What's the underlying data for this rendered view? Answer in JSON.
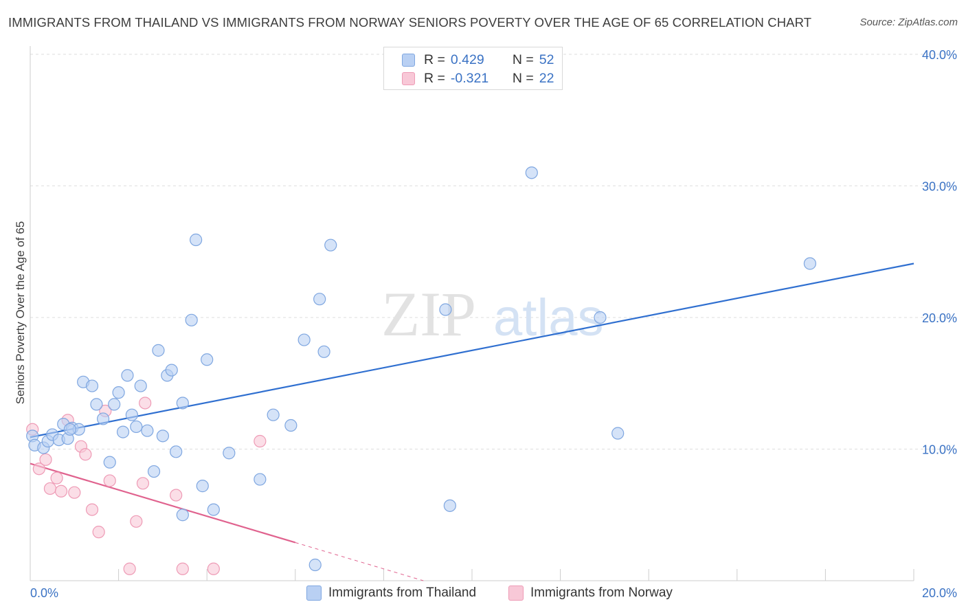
{
  "header": {
    "title": "IMMIGRANTS FROM THAILAND VS IMMIGRANTS FROM NORWAY SENIORS POVERTY OVER THE AGE OF 65 CORRELATION CHART",
    "source": "Source: ZipAtlas.com"
  },
  "legend": {
    "r_label": "R =",
    "n_label": "N =",
    "series": [
      {
        "r": "0.429",
        "n": "52"
      },
      {
        "r": "-0.321",
        "n": "22"
      }
    ]
  },
  "watermark": {
    "zip": "ZIP",
    "atlas": "atlas"
  },
  "colors": {
    "thailand_fill": "#b9d0f3",
    "thailand_stroke": "#7ea6e0",
    "thailand_line": "#2f6fd0",
    "norway_fill": "#f8c8d7",
    "norway_stroke": "#ee9ab5",
    "norway_line": "#e0628e",
    "axis_text": "#3a72c4"
  },
  "chart_data": {
    "type": "scatter",
    "title": "IMMIGRANTS FROM THAILAND VS IMMIGRANTS FROM NORWAY SENIORS POVERTY OVER THE AGE OF 65 CORRELATION CHART",
    "xlabel": "",
    "ylabel": "Seniors Poverty Over the Age of 65",
    "xlim": [
      0,
      20
    ],
    "ylim": [
      0,
      40
    ],
    "x_tick_labels": [
      {
        "value": 0,
        "label": "0.0%"
      },
      {
        "value": 20,
        "label": "20.0%"
      }
    ],
    "y_ticks": [
      {
        "value": 10,
        "label": "10.0%"
      },
      {
        "value": 20,
        "label": "20.0%"
      },
      {
        "value": 30,
        "label": "30.0%"
      },
      {
        "value": 40,
        "label": "40.0%"
      }
    ],
    "x_minor_ticks": [
      0,
      2,
      4,
      6,
      8,
      10,
      12,
      14,
      16,
      18,
      20
    ],
    "grid": true,
    "series": [
      {
        "name": "Immigrants from Thailand",
        "r": 0.429,
        "n": 52,
        "trend": {
          "x": [
            0,
            20
          ],
          "y": [
            10.9,
            24.1
          ],
          "dashed_until": null
        },
        "points": [
          [
            0.05,
            11.0
          ],
          [
            0.1,
            10.3
          ],
          [
            0.3,
            10.1
          ],
          [
            0.4,
            10.6
          ],
          [
            0.5,
            11.1
          ],
          [
            0.65,
            10.7
          ],
          [
            0.75,
            11.9
          ],
          [
            0.85,
            10.8
          ],
          [
            0.95,
            11.6
          ],
          [
            1.1,
            11.5
          ],
          [
            1.2,
            15.1
          ],
          [
            1.4,
            14.8
          ],
          [
            1.5,
            13.4
          ],
          [
            1.65,
            12.3
          ],
          [
            1.8,
            9.0
          ],
          [
            1.9,
            13.4
          ],
          [
            2.0,
            14.3
          ],
          [
            2.1,
            11.3
          ],
          [
            2.2,
            15.6
          ],
          [
            2.3,
            12.6
          ],
          [
            2.4,
            11.7
          ],
          [
            2.5,
            14.8
          ],
          [
            2.65,
            11.4
          ],
          [
            2.8,
            8.3
          ],
          [
            2.9,
            17.5
          ],
          [
            3.0,
            11.0
          ],
          [
            3.1,
            15.6
          ],
          [
            3.2,
            16.0
          ],
          [
            3.3,
            9.8
          ],
          [
            3.45,
            13.5
          ],
          [
            3.65,
            19.8
          ],
          [
            3.75,
            25.9
          ],
          [
            3.9,
            7.2
          ],
          [
            4.0,
            16.8
          ],
          [
            4.15,
            5.4
          ],
          [
            4.5,
            9.7
          ],
          [
            5.2,
            7.7
          ],
          [
            5.5,
            12.6
          ],
          [
            5.9,
            11.8
          ],
          [
            6.2,
            18.3
          ],
          [
            6.55,
            21.4
          ],
          [
            6.65,
            17.4
          ],
          [
            6.8,
            25.5
          ],
          [
            9.4,
            20.6
          ],
          [
            9.5,
            5.7
          ],
          [
            11.35,
            31.0
          ],
          [
            12.9,
            20.0
          ],
          [
            13.3,
            11.2
          ],
          [
            17.65,
            24.1
          ],
          [
            3.45,
            5.0
          ],
          [
            6.45,
            1.2
          ],
          [
            0.9,
            11.5
          ]
        ]
      },
      {
        "name": "Immigrants from Norway",
        "r": -0.321,
        "n": 22,
        "trend": {
          "x": [
            0,
            20
          ],
          "y": [
            8.9,
            -11.1
          ],
          "solid_until_x": 6.0
        },
        "points": [
          [
            0.05,
            11.5
          ],
          [
            0.2,
            8.5
          ],
          [
            0.35,
            9.2
          ],
          [
            0.45,
            7.0
          ],
          [
            0.6,
            7.8
          ],
          [
            0.7,
            6.8
          ],
          [
            0.85,
            12.2
          ],
          [
            1.0,
            6.7
          ],
          [
            1.15,
            10.2
          ],
          [
            1.25,
            9.6
          ],
          [
            1.4,
            5.4
          ],
          [
            1.55,
            3.7
          ],
          [
            1.7,
            12.9
          ],
          [
            1.8,
            7.6
          ],
          [
            2.25,
            0.9
          ],
          [
            2.4,
            4.5
          ],
          [
            2.55,
            7.4
          ],
          [
            2.6,
            13.5
          ],
          [
            3.3,
            6.5
          ],
          [
            3.45,
            0.9
          ],
          [
            4.15,
            0.9
          ],
          [
            5.2,
            10.6
          ]
        ]
      }
    ]
  },
  "bottom_legend": {
    "items": [
      {
        "label": "Immigrants from Thailand"
      },
      {
        "label": "Immigrants from Norway"
      }
    ]
  }
}
